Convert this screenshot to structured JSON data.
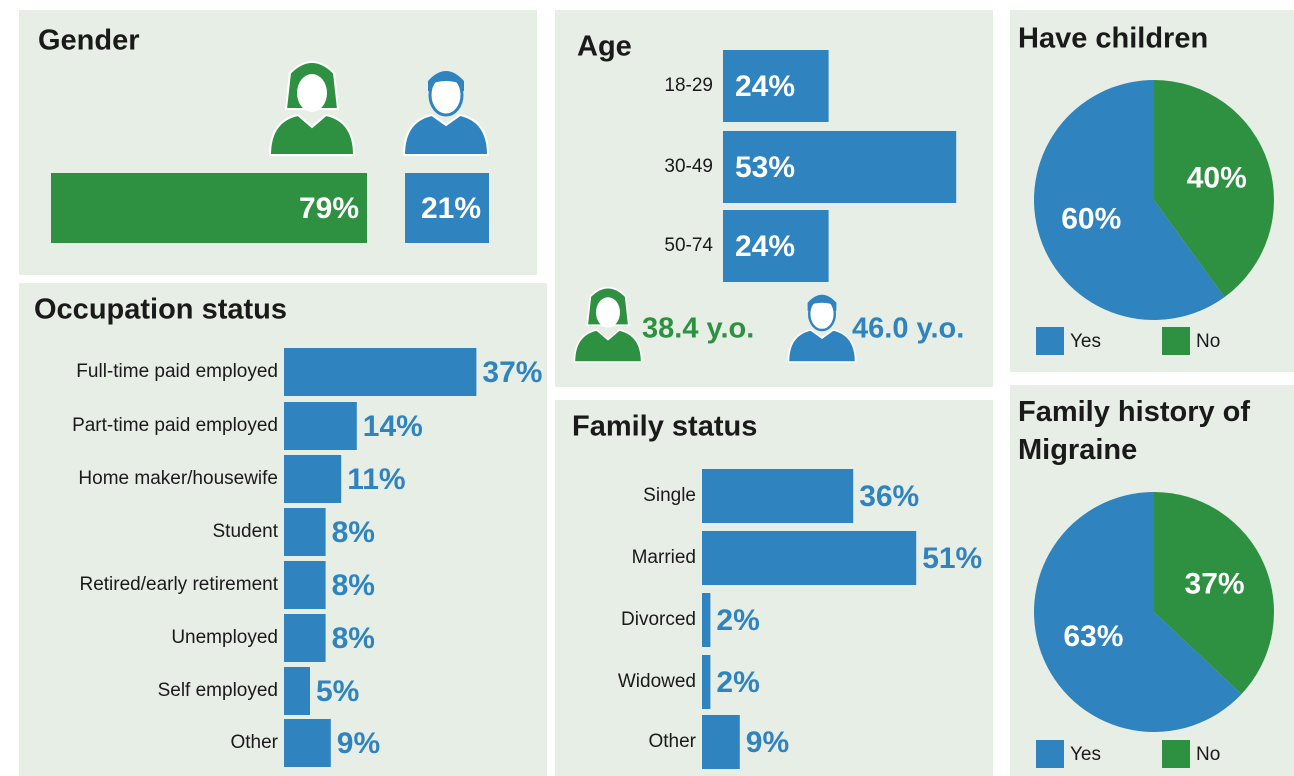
{
  "chart_data": [
    {
      "type": "bar",
      "title": "Gender",
      "categories": [
        null,
        null
      ],
      "values": [
        79,
        21
      ],
      "value_labels": [
        "79%",
        "21%"
      ],
      "colors": [
        "#2e9142",
        "#2f83bf"
      ]
    },
    {
      "type": "bar",
      "title": "Age",
      "categories": [
        "18-29",
        "30-49",
        "50-74"
      ],
      "values": [
        24,
        53,
        24
      ],
      "value_labels": [
        "24%",
        "53%",
        "24%"
      ],
      "color": "#2f83bf",
      "annotations": [
        {
          "text": "38.4 y.o.",
          "color": "#2e9142"
        },
        {
          "text": "46.0 y.o.",
          "color": "#2f83bf"
        }
      ]
    },
    {
      "type": "pie",
      "title": "Have children",
      "categories": [
        "Yes",
        "No"
      ],
      "values": [
        60,
        40
      ],
      "value_labels": [
        "60%",
        "40%"
      ],
      "colors": [
        "#2f83bf",
        "#2e9142"
      ]
    },
    {
      "type": "bar",
      "title": "Occupation status",
      "categories": [
        "Full-time paid employed",
        "Part-time paid employed",
        "Home maker/housewife",
        "Student",
        "Retired/early retirement",
        "Unemployed",
        "Self employed",
        "Other"
      ],
      "values": [
        37,
        14,
        11,
        8,
        8,
        8,
        5,
        9
      ],
      "value_labels": [
        "37%",
        "14%",
        "11%",
        "8%",
        "8%",
        "8%",
        "5%",
        "9%"
      ],
      "color": "#2f83bf"
    },
    {
      "type": "bar",
      "title": "Family status",
      "categories": [
        "Single",
        "Married",
        "Divorced",
        "Widowed",
        "Other"
      ],
      "values": [
        36,
        51,
        2,
        2,
        9
      ],
      "value_labels": [
        "36%",
        "51%",
        "2%",
        "2%",
        "9%"
      ],
      "color": "#2f83bf"
    },
    {
      "type": "pie",
      "title": "Family history of Migraine",
      "categories": [
        "Yes",
        "No"
      ],
      "values": [
        63,
        37
      ],
      "value_labels": [
        "63%",
        "37%"
      ],
      "colors": [
        "#2f83bf",
        "#2e9142"
      ]
    }
  ]
}
